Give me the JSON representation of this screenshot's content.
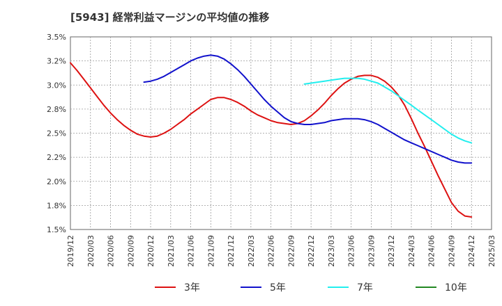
{
  "chart_data": {
    "type": "line",
    "title": "[5943]  経常利益マージンの平均値の推移",
    "xlabel": "",
    "ylabel": "",
    "ylim": [
      1.5,
      3.5
    ],
    "grid": true,
    "legend_position": "bottom",
    "y_ticks": [
      "1.5%",
      "1.8%",
      "2.0%",
      "2.2%",
      "2.5%",
      "2.8%",
      "3.0%",
      "3.2%",
      "3.5%"
    ],
    "x_ticks": [
      "2019/12",
      "2020/03",
      "2020/06",
      "2020/09",
      "2020/12",
      "2021/03",
      "2021/06",
      "2021/09",
      "2021/12",
      "2022/03",
      "2022/06",
      "2022/09",
      "2022/12",
      "2023/03",
      "2023/06",
      "2023/09",
      "2023/12",
      "2024/03",
      "2024/06",
      "2024/09",
      "2024/12",
      "2025/03"
    ],
    "series": [
      {
        "name": "3年",
        "color": "#dd1111",
        "x": [
          "2019/12",
          "2020/01",
          "2020/02",
          "2020/03",
          "2020/04",
          "2020/05",
          "2020/06",
          "2020/07",
          "2020/08",
          "2020/09",
          "2020/10",
          "2020/11",
          "2020/12",
          "2021/01",
          "2021/02",
          "2021/03",
          "2021/04",
          "2021/05",
          "2021/06",
          "2021/07",
          "2021/08",
          "2021/09",
          "2021/10",
          "2021/11",
          "2021/12",
          "2022/01",
          "2022/02",
          "2022/03",
          "2022/04",
          "2022/05",
          "2022/06",
          "2022/07",
          "2022/08",
          "2022/09",
          "2022/10",
          "2022/11",
          "2022/12",
          "2023/01",
          "2023/02",
          "2023/03",
          "2023/04",
          "2023/05",
          "2023/06",
          "2023/07",
          "2023/08",
          "2023/09",
          "2023/10",
          "2023/11",
          "2023/12",
          "2024/01",
          "2024/02",
          "2024/03",
          "2024/04",
          "2024/05",
          "2024/06",
          "2024/07",
          "2024/08",
          "2024/09",
          "2024/10",
          "2024/11",
          "2024/12"
        ],
        "values": [
          3.23,
          3.15,
          3.06,
          2.97,
          2.88,
          2.79,
          2.71,
          2.64,
          2.58,
          2.53,
          2.49,
          2.47,
          2.46,
          2.47,
          2.5,
          2.54,
          2.59,
          2.64,
          2.7,
          2.75,
          2.8,
          2.85,
          2.87,
          2.87,
          2.85,
          2.82,
          2.78,
          2.73,
          2.69,
          2.66,
          2.63,
          2.61,
          2.6,
          2.59,
          2.6,
          2.63,
          2.68,
          2.74,
          2.81,
          2.89,
          2.96,
          3.02,
          3.06,
          3.09,
          3.1,
          3.1,
          3.08,
          3.04,
          2.98,
          2.9,
          2.79,
          2.65,
          2.5,
          2.36,
          2.21,
          2.06,
          1.92,
          1.78,
          1.69,
          1.64,
          1.63
        ]
      },
      {
        "name": "5年",
        "color": "#1111cc",
        "x": [
          "2020/11",
          "2020/12",
          "2021/01",
          "2021/02",
          "2021/03",
          "2021/04",
          "2021/05",
          "2021/06",
          "2021/07",
          "2021/08",
          "2021/09",
          "2021/10",
          "2021/11",
          "2021/12",
          "2022/01",
          "2022/02",
          "2022/03",
          "2022/04",
          "2022/05",
          "2022/06",
          "2022/07",
          "2022/08",
          "2022/09",
          "2022/10",
          "2022/11",
          "2022/12",
          "2023/01",
          "2023/02",
          "2023/03",
          "2023/04",
          "2023/05",
          "2023/06",
          "2023/07",
          "2023/08",
          "2023/09",
          "2023/10",
          "2023/11",
          "2023/12",
          "2024/01",
          "2024/02",
          "2024/03",
          "2024/04",
          "2024/05",
          "2024/06",
          "2024/07",
          "2024/08",
          "2024/09",
          "2024/10",
          "2024/11",
          "2024/12"
        ],
        "values": [
          3.03,
          3.04,
          3.06,
          3.09,
          3.13,
          3.17,
          3.21,
          3.25,
          3.28,
          3.3,
          3.31,
          3.3,
          3.27,
          3.22,
          3.16,
          3.09,
          3.01,
          2.93,
          2.85,
          2.78,
          2.72,
          2.66,
          2.62,
          2.6,
          2.59,
          2.59,
          2.6,
          2.61,
          2.63,
          2.64,
          2.65,
          2.65,
          2.65,
          2.64,
          2.62,
          2.59,
          2.55,
          2.51,
          2.47,
          2.43,
          2.4,
          2.37,
          2.34,
          2.31,
          2.28,
          2.25,
          2.22,
          2.2,
          2.19,
          2.19
        ]
      },
      {
        "name": "7年",
        "color": "#22eeee",
        "x": [
          "2022/11",
          "2022/12",
          "2023/01",
          "2023/02",
          "2023/03",
          "2023/04",
          "2023/05",
          "2023/06",
          "2023/07",
          "2023/08",
          "2023/09",
          "2023/10",
          "2023/11",
          "2023/12",
          "2024/01",
          "2024/02",
          "2024/03",
          "2024/04",
          "2024/05",
          "2024/06",
          "2024/07",
          "2024/08",
          "2024/09",
          "2024/10",
          "2024/11",
          "2024/12"
        ],
        "values": [
          3.01,
          3.02,
          3.03,
          3.04,
          3.05,
          3.06,
          3.07,
          3.07,
          3.07,
          3.06,
          3.04,
          3.02,
          2.98,
          2.94,
          2.89,
          2.84,
          2.79,
          2.74,
          2.69,
          2.64,
          2.59,
          2.54,
          2.49,
          2.45,
          2.42,
          2.4
        ]
      },
      {
        "name": "10年",
        "color": "#228822",
        "x": [],
        "values": []
      }
    ]
  }
}
